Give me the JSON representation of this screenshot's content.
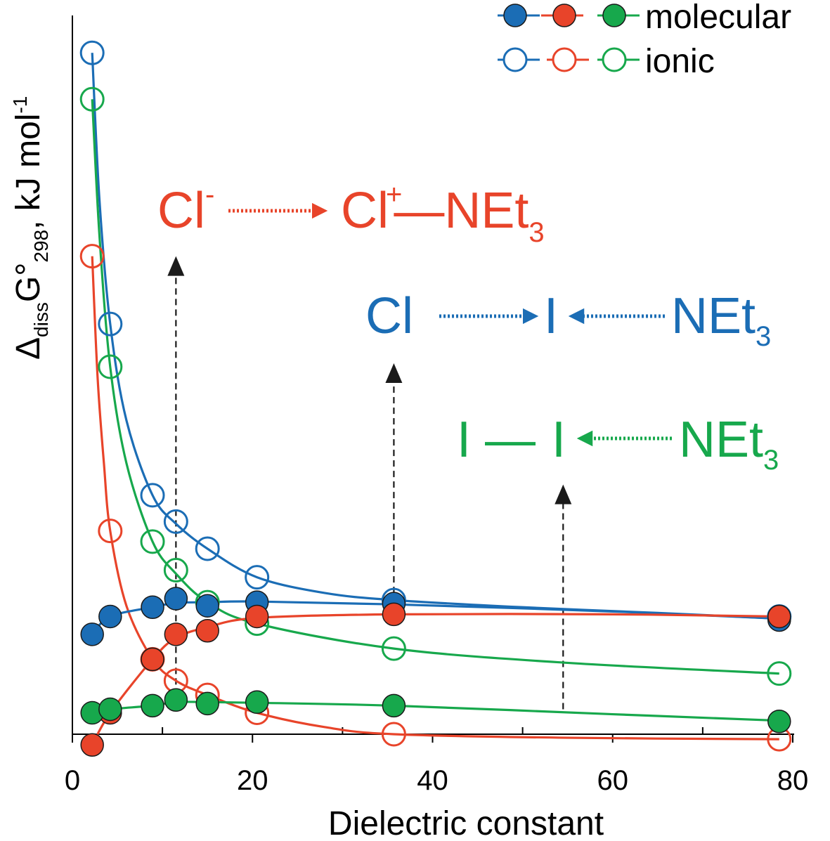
{
  "chart_data": {
    "type": "scatter",
    "xlabel": "Dielectric constant",
    "ylabel": {
      "delta": "Δ",
      "sub1": "diss",
      "g": "G°",
      "sub2": "298",
      "unit": ", kJ mol",
      "sup": "-1"
    },
    "xlim": [
      0,
      80
    ],
    "ylim": [
      -3,
      97
    ],
    "x_ticks": [
      0,
      20,
      40,
      60,
      80
    ],
    "x_minor_ticks": [
      10,
      30,
      50,
      70
    ],
    "grid": false,
    "legend": {
      "position": "top-right",
      "entries": [
        {
          "label": "molecular",
          "style": "filled"
        },
        {
          "label": "ionic",
          "style": "open"
        }
      ]
    },
    "colors": {
      "blue": "#1b6db5",
      "red": "#e8442a",
      "green": "#17a84c",
      "axis": "#000000"
    },
    "series": [
      {
        "system": "Cl-I…NEt3",
        "color": "blue",
        "style": "filled",
        "x": [
          2.2,
          4.2,
          8.9,
          11.5,
          15.0,
          20.5,
          35.7,
          78.5
        ],
        "y": [
          14.0,
          16.5,
          17.8,
          19.0,
          18.0,
          18.5,
          18.3,
          16.0
        ],
        "curve": [
          [
            2.2,
            14.0
          ],
          [
            4.2,
            16.5
          ],
          [
            8.9,
            17.8
          ],
          [
            11.5,
            18.4
          ],
          [
            15.0,
            18.5
          ],
          [
            20.5,
            18.6
          ],
          [
            35.7,
            18.2
          ],
          [
            60,
            17.2
          ],
          [
            78.5,
            16.2
          ]
        ]
      },
      {
        "system": "Cl-I…NEt3",
        "color": "blue",
        "style": "open",
        "x": [
          2.2,
          4.2,
          8.9,
          11.5,
          15.0,
          20.5,
          35.7,
          78.5
        ],
        "y": [
          95.5,
          57.5,
          33.5,
          29.8,
          26.0,
          22.0,
          18.8,
          16.5
        ],
        "curve": [
          [
            2.2,
            95.5
          ],
          [
            3.0,
            75.0
          ],
          [
            4.2,
            57.5
          ],
          [
            6.0,
            44.0
          ],
          [
            8.9,
            33.5
          ],
          [
            11.5,
            29.5
          ],
          [
            15.0,
            26.0
          ],
          [
            20.5,
            22.0
          ],
          [
            28,
            19.8
          ],
          [
            35.7,
            18.8
          ],
          [
            50,
            17.8
          ],
          [
            65,
            17.0
          ],
          [
            78.5,
            16.2
          ]
        ]
      },
      {
        "system": "Cl+–NEt3",
        "color": "red",
        "style": "filled",
        "x": [
          2.2,
          4.2,
          8.9,
          11.5,
          15.0,
          20.5,
          35.7,
          78.5
        ],
        "y": [
          -1.5,
          3.0,
          10.5,
          14.0,
          14.5,
          16.5,
          16.8,
          16.5
        ],
        "curve": [
          [
            2.2,
            -1.5
          ],
          [
            4.2,
            3.0
          ],
          [
            8.9,
            10.5
          ],
          [
            11.5,
            13.5
          ],
          [
            15.0,
            15.0
          ],
          [
            20.5,
            16.3
          ],
          [
            35.7,
            16.8
          ],
          [
            60,
            16.8
          ],
          [
            78.5,
            16.5
          ]
        ]
      },
      {
        "system": "Cl+–NEt3",
        "color": "red",
        "style": "open",
        "x": [
          2.2,
          4.2,
          8.9,
          11.5,
          15.0,
          20.5,
          35.7,
          78.5
        ],
        "y": [
          67.0,
          28.5,
          10.5,
          7.5,
          5.5,
          3.0,
          0.0,
          -0.7
        ],
        "curve": [
          [
            2.2,
            67.0
          ],
          [
            2.8,
            50.0
          ],
          [
            3.5,
            38.0
          ],
          [
            4.2,
            28.5
          ],
          [
            6.0,
            18.0
          ],
          [
            8.9,
            10.5
          ],
          [
            11.5,
            7.5
          ],
          [
            15.0,
            5.5
          ],
          [
            20.5,
            3.0
          ],
          [
            28,
            1.0
          ],
          [
            35.7,
            0.0
          ],
          [
            55,
            -0.5
          ],
          [
            78.5,
            -0.7
          ]
        ]
      },
      {
        "system": "I–I…NEt3",
        "color": "green",
        "style": "filled",
        "x": [
          2.2,
          4.2,
          8.9,
          11.5,
          15.0,
          20.5,
          35.7,
          78.5
        ],
        "y": [
          3.0,
          3.5,
          4.0,
          4.8,
          4.3,
          4.5,
          4.0,
          1.8
        ],
        "curve": [
          [
            2.2,
            3.0
          ],
          [
            4.2,
            3.5
          ],
          [
            8.9,
            4.0
          ],
          [
            11.5,
            4.5
          ],
          [
            15.0,
            4.5
          ],
          [
            20.5,
            4.4
          ],
          [
            35.7,
            4.0
          ],
          [
            60,
            2.8
          ],
          [
            78.5,
            1.9
          ]
        ]
      },
      {
        "system": "I–I…NEt3",
        "color": "green",
        "style": "open",
        "x": [
          2.2,
          4.2,
          8.9,
          11.5,
          15.0,
          20.5,
          35.7,
          78.5
        ],
        "y": [
          89.0,
          51.5,
          27.0,
          23.0,
          18.5,
          15.5,
          12.0,
          8.5
        ],
        "curve": [
          [
            2.2,
            89.0
          ],
          [
            3.0,
            70.0
          ],
          [
            4.2,
            51.5
          ],
          [
            6.0,
            38.0
          ],
          [
            8.9,
            27.0
          ],
          [
            11.5,
            22.5
          ],
          [
            15.0,
            18.5
          ],
          [
            20.5,
            15.5
          ],
          [
            35.7,
            12.0
          ],
          [
            55,
            10.0
          ],
          [
            78.5,
            8.5
          ]
        ]
      }
    ],
    "annotations": [
      {
        "color": "red",
        "arrow_x": 11.5,
        "arrow_y_from": 4.0,
        "arrow_y_to": 67.0,
        "parts": {
          "a": "Cl",
          "a_sup": "-",
          "b": "Cl",
          "b_sup": "+",
          "c": "—NEt",
          "c_sub": "3"
        }
      },
      {
        "color": "blue",
        "arrow_x": 35.7,
        "arrow_y_from": 18.3,
        "arrow_y_to": 52.0,
        "parts": {
          "a": "Cl",
          "b": "I",
          "c": "NEt",
          "c_sub": "3"
        }
      },
      {
        "color": "green",
        "arrow_x": 54.5,
        "arrow_y_from": 3.5,
        "arrow_y_to": 35.0,
        "parts": {
          "a": "I",
          "sep": "—",
          "b": "I",
          "c": "NEt",
          "c_sub": "3"
        }
      }
    ]
  }
}
